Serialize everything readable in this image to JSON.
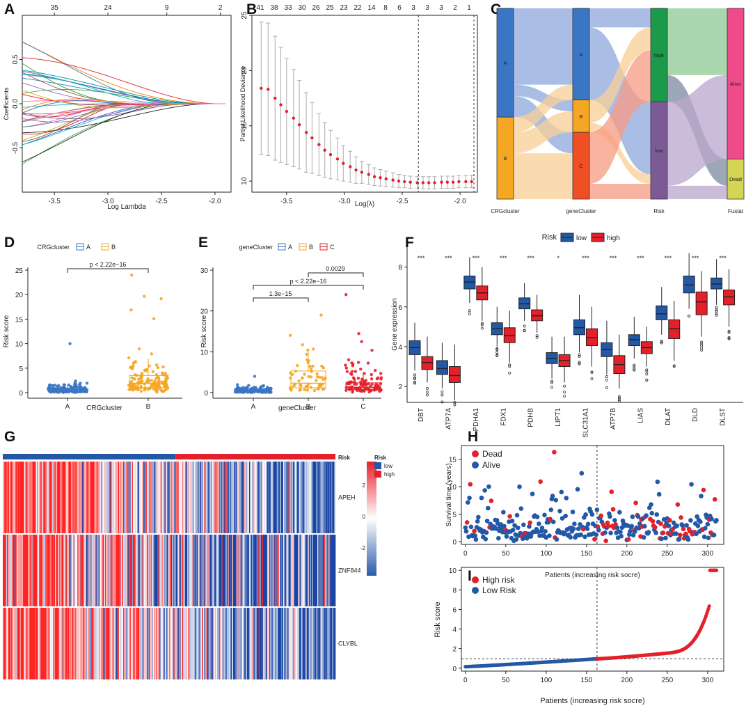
{
  "figure": {
    "colors": {
      "blue": "#2258a6",
      "red": "#e4202b",
      "orange": "#f5a623",
      "bluePanelC": "#3b76c4"
    }
  },
  "chart_data": [
    {
      "panel": "A",
      "type": "line",
      "xlabel": "Log Lambda",
      "ylabel": "Coefficients",
      "xlim": [
        -3.8,
        -1.85
      ],
      "ylim": [
        -1.0,
        1.0
      ],
      "x_ticks": [
        "-3.5",
        "-3.0",
        "-2.5",
        "-2.0"
      ],
      "y_ticks": [
        "-0.5",
        "0.0",
        "0.5"
      ],
      "top_ticks": [
        "35",
        "24",
        "9",
        "2"
      ],
      "series_count": 35
    },
    {
      "panel": "B",
      "type": "scatter",
      "xlabel": "Log(λ)",
      "ylabel": "Partial Likelihood Deviance",
      "xlim": [
        -3.8,
        -1.85
      ],
      "ylim": [
        9,
        25
      ],
      "x_ticks": [
        "-3.5",
        "-3.0",
        "-2.5",
        "-2.0"
      ],
      "y_ticks": [
        "10",
        "15",
        "20",
        "25"
      ],
      "top_ticks": [
        "41",
        "38",
        "33",
        "30",
        "26",
        "25",
        "23",
        "22",
        "14",
        "8",
        "6",
        "3",
        "3",
        "3",
        "2",
        "1"
      ],
      "vlines": [
        -2.36,
        -1.88
      ],
      "x": [
        -3.72,
        -3.66,
        -3.6,
        -3.55,
        -3.5,
        -3.44,
        -3.39,
        -3.33,
        -3.28,
        -3.22,
        -3.17,
        -3.12,
        -3.06,
        -3.01,
        -2.95,
        -2.9,
        -2.85,
        -2.79,
        -2.74,
        -2.69,
        -2.64,
        -2.58,
        -2.53,
        -2.48,
        -2.43,
        -2.37,
        -2.32,
        -2.27,
        -2.22,
        -2.16,
        -2.11,
        -2.06,
        -2.01,
        -1.95,
        -1.9
      ],
      "mean": [
        18.4,
        18.3,
        17.5,
        16.9,
        16.3,
        15.7,
        15.1,
        14.4,
        13.9,
        13.3,
        12.8,
        12.4,
        12.0,
        11.6,
        11.3,
        11.0,
        10.8,
        10.6,
        10.4,
        10.3,
        10.2,
        10.1,
        10.0,
        9.95,
        9.9,
        9.85,
        9.85,
        9.85,
        9.85,
        9.9,
        9.9,
        9.9,
        9.95,
        9.95,
        9.95
      ],
      "err": [
        6.0,
        6.0,
        5.6,
        5.2,
        4.8,
        4.4,
        4.0,
        3.6,
        3.2,
        2.8,
        2.5,
        2.2,
        1.9,
        1.6,
        1.4,
        1.2,
        1.0,
        0.9,
        0.8,
        0.75,
        0.7,
        0.65,
        0.6,
        0.55,
        0.55,
        0.55,
        0.55,
        0.55,
        0.55,
        0.55,
        0.55,
        0.55,
        0.55,
        0.55,
        0.55
      ]
    },
    {
      "panel": "C",
      "type": "sankey",
      "axes": [
        "CRGcluster",
        "geneCluster",
        "Risk",
        "Fustat"
      ],
      "nodes": [
        {
          "axis": 0,
          "label": "A",
          "share": 0.57,
          "color": "#3b76c4"
        },
        {
          "axis": 0,
          "label": "B",
          "share": 0.43,
          "color": "#f5a623"
        },
        {
          "axis": 1,
          "label": "A",
          "share": 0.48,
          "color": "#3b76c4"
        },
        {
          "axis": 1,
          "label": "B",
          "share": 0.17,
          "color": "#f5a623"
        },
        {
          "axis": 1,
          "label": "C",
          "share": 0.35,
          "color": "#f04e23"
        },
        {
          "axis": 2,
          "label": "high",
          "share": 0.49,
          "color": "#1a9a4a"
        },
        {
          "axis": 2,
          "label": "low",
          "share": 0.51,
          "color": "#7b5a95"
        },
        {
          "axis": 3,
          "label": "Alive",
          "share": 0.79,
          "color": "#ef4a8a"
        },
        {
          "axis": 3,
          "label": "Dead",
          "share": 0.21,
          "color": "#d4d455"
        }
      ]
    },
    {
      "panel": "D",
      "type": "box",
      "legend_title": "CRGcluster",
      "legend": [
        "A",
        "B"
      ],
      "categories": [
        "A",
        "B"
      ],
      "xlabel": "CRGcluster",
      "ylabel": "Risk score",
      "ylim": [
        0,
        25
      ],
      "y_ticks": [
        "0",
        "5",
        "10",
        "15",
        "20",
        "25"
      ],
      "pvalue": "p < 2.22e−16",
      "boxes": [
        {
          "q1": 0.3,
          "med": 0.6,
          "q3": 0.9,
          "wlo": 0.05,
          "whi": 1.6,
          "max": 10
        },
        {
          "q1": 1.0,
          "med": 1.9,
          "q3": 3.5,
          "wlo": 0.2,
          "whi": 7.0,
          "max": 24
        }
      ]
    },
    {
      "panel": "E",
      "type": "box",
      "legend_title": "geneCluster",
      "legend": [
        "A",
        "B",
        "C"
      ],
      "categories": [
        "A",
        "B",
        "C"
      ],
      "xlabel": "geneCluster",
      "ylabel": "Risk score",
      "ylim": [
        0,
        30
      ],
      "y_ticks": [
        "0",
        "10",
        "20",
        "30"
      ],
      "comparisons": [
        {
          "pair": [
            "B",
            "C"
          ],
          "label": "0.0029"
        },
        {
          "pair": [
            "A",
            "C"
          ],
          "label": "p < 2.22e−16"
        },
        {
          "pair": [
            "A",
            "B"
          ],
          "label": "1.3e−15"
        }
      ],
      "boxes": [
        {
          "q1": 0.4,
          "med": 0.6,
          "q3": 0.9,
          "wlo": 0.05,
          "whi": 1.6,
          "max": 4
        },
        {
          "q1": 1.2,
          "med": 2.3,
          "q3": 5.3,
          "wlo": 0.3,
          "whi": 10,
          "max": 19
        },
        {
          "q1": 0.8,
          "med": 1.3,
          "q3": 2.4,
          "wlo": 0.1,
          "whi": 5,
          "max": 24
        }
      ]
    },
    {
      "panel": "F",
      "type": "box",
      "legend_title": "Risk",
      "legend": [
        "low",
        "high"
      ],
      "ylabel": "Gene expression",
      "ylim": [
        1.2,
        9
      ],
      "y_ticks": [
        "2",
        "4",
        "6",
        "8"
      ],
      "genes": [
        "DBT",
        "ATP7A",
        "PDHA1",
        "FDX1",
        "PDHB",
        "LIPT1",
        "SLC31A1",
        "ATP7B",
        "LIAS",
        "DLAT",
        "DLD",
        "DLST"
      ],
      "sig": [
        "***",
        "***",
        "***",
        "***",
        "***",
        "*",
        "***",
        "***",
        "***",
        "***",
        "***",
        "***"
      ],
      "low": [
        {
          "q1": 3.6,
          "med": 3.95,
          "q3": 4.3,
          "wlo": 2.8,
          "whi": 5.2
        },
        {
          "q1": 2.6,
          "med": 2.9,
          "q3": 3.3,
          "wlo": 1.9,
          "whi": 4.2
        },
        {
          "q1": 6.9,
          "med": 7.25,
          "q3": 7.55,
          "wlo": 6.2,
          "whi": 8.5
        },
        {
          "q1": 4.6,
          "med": 4.9,
          "q3": 5.2,
          "wlo": 4.0,
          "whi": 6.0
        },
        {
          "q1": 5.9,
          "med": 6.15,
          "q3": 6.45,
          "wlo": 5.3,
          "whi": 7.2
        },
        {
          "q1": 3.15,
          "med": 3.4,
          "q3": 3.7,
          "wlo": 2.4,
          "whi": 4.5
        },
        {
          "q1": 4.6,
          "med": 4.95,
          "q3": 5.35,
          "wlo": 3.7,
          "whi": 6.6
        },
        {
          "q1": 3.5,
          "med": 3.85,
          "q3": 4.2,
          "wlo": 2.6,
          "whi": 5.3
        },
        {
          "q1": 4.05,
          "med": 4.35,
          "q3": 4.6,
          "wlo": 3.4,
          "whi": 5.5
        },
        {
          "q1": 5.35,
          "med": 5.65,
          "q3": 6.05,
          "wlo": 4.6,
          "whi": 7.0
        },
        {
          "q1": 6.7,
          "med": 7.1,
          "q3": 7.55,
          "wlo": 5.9,
          "whi": 8.7
        },
        {
          "q1": 6.9,
          "med": 7.15,
          "q3": 7.45,
          "wlo": 6.1,
          "whi": 8.4
        }
      ],
      "high": [
        {
          "q1": 2.85,
          "med": 3.2,
          "q3": 3.5,
          "wlo": 2.2,
          "whi": 4.5
        },
        {
          "q1": 2.2,
          "med": 2.55,
          "q3": 3.0,
          "wlo": 1.3,
          "whi": 4.1
        },
        {
          "q1": 6.35,
          "med": 6.7,
          "q3": 7.05,
          "wlo": 5.3,
          "whi": 8.0
        },
        {
          "q1": 4.2,
          "med": 4.55,
          "q3": 4.95,
          "wlo": 3.2,
          "whi": 5.8
        },
        {
          "q1": 5.3,
          "med": 5.55,
          "q3": 5.85,
          "wlo": 4.7,
          "whi": 6.6
        },
        {
          "q1": 3.0,
          "med": 3.3,
          "q3": 3.6,
          "wlo": 2.2,
          "whi": 4.5
        },
        {
          "q1": 4.05,
          "med": 4.45,
          "q3": 4.9,
          "wlo": 3.0,
          "whi": 6.0
        },
        {
          "q1": 2.65,
          "med": 3.1,
          "q3": 3.55,
          "wlo": 1.9,
          "whi": 4.6
        },
        {
          "q1": 3.65,
          "med": 3.95,
          "q3": 4.25,
          "wlo": 3.0,
          "whi": 5.0
        },
        {
          "q1": 4.4,
          "med": 4.9,
          "q3": 5.35,
          "wlo": 3.3,
          "whi": 6.3
        },
        {
          "q1": 5.6,
          "med": 6.25,
          "q3": 6.75,
          "wlo": 4.5,
          "whi": 7.8
        },
        {
          "q1": 6.1,
          "med": 6.5,
          "q3": 6.85,
          "wlo": 5.0,
          "whi": 7.9
        }
      ]
    },
    {
      "panel": "G",
      "type": "heatmap",
      "rows": [
        "APEH",
        "ZNF844",
        "CLYBL"
      ],
      "annotation_label": "Risk",
      "low_fraction": 0.52,
      "legend_title": "Risk",
      "legend": [
        "low",
        "high"
      ],
      "colorbar_ticks": [
        "2",
        "0",
        "-2"
      ]
    },
    {
      "panel": "H",
      "type": "scatter",
      "ylabel": "Survival time (years)",
      "xlabel": "Patients (increasing risk socre)",
      "legend": [
        "Dead",
        "Alive"
      ],
      "xlim": [
        -5,
        320
      ],
      "ylim": [
        -0.5,
        17.5
      ],
      "x_ticks": [
        "0",
        "50",
        "100",
        "150",
        "200",
        "250",
        "300"
      ],
      "y_ticks": [
        "0",
        "5",
        "10",
        "15"
      ],
      "cutoff": 163,
      "n": 312
    },
    {
      "panel": "I",
      "type": "scatter",
      "ylabel": "Risk score",
      "xlabel": "Patients (increasing risk socre)",
      "legend": [
        "High risk",
        "Low Risk"
      ],
      "xlim": [
        -5,
        320
      ],
      "ylim": [
        -0.3,
        10.3
      ],
      "x_ticks": [
        "0",
        "50",
        "100",
        "150",
        "200",
        "250",
        "300"
      ],
      "y_ticks": [
        "0",
        "2",
        "4",
        "6",
        "8",
        "10"
      ],
      "cutoff": 163,
      "threshold": 0.95,
      "n": 312
    }
  ],
  "panel_letters": [
    "A",
    "B",
    "C",
    "D",
    "E",
    "F",
    "G",
    "H",
    "I"
  ]
}
